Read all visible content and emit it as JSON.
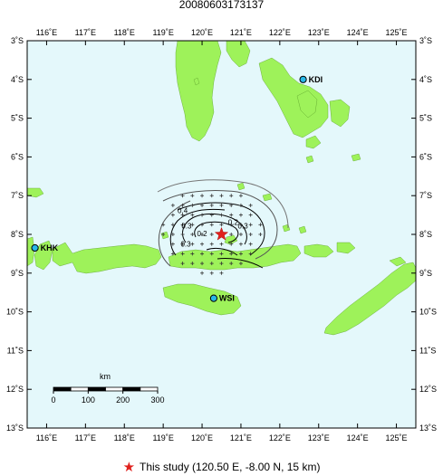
{
  "title": "20080603173137",
  "map": {
    "lon_range": [
      115.5,
      125.5
    ],
    "lat_range": [
      -13,
      -3
    ],
    "land_color": "#9ef25a",
    "sea_color": "#e4f8fb",
    "lon_ticks": [
      {
        "value": 116,
        "label": "116˚E"
      },
      {
        "value": 117,
        "label": "117˚E"
      },
      {
        "value": 118,
        "label": "118˚E"
      },
      {
        "value": 119,
        "label": "119˚E"
      },
      {
        "value": 120,
        "label": "120˚E"
      },
      {
        "value": 121,
        "label": "121˚E"
      },
      {
        "value": 122,
        "label": "122˚E"
      },
      {
        "value": 123,
        "label": "123˚E"
      },
      {
        "value": 124,
        "label": "124˚E"
      },
      {
        "value": 125,
        "label": "125˚E"
      }
    ],
    "lat_ticks": [
      {
        "value": -3,
        "label": "3˚S"
      },
      {
        "value": -4,
        "label": "4˚S"
      },
      {
        "value": -5,
        "label": "5˚S"
      },
      {
        "value": -6,
        "label": "6˚S"
      },
      {
        "value": -7,
        "label": "7˚S"
      },
      {
        "value": -8,
        "label": "8˚S"
      },
      {
        "value": -9,
        "label": "9˚S"
      },
      {
        "value": -10,
        "label": "10˚S"
      },
      {
        "value": -11,
        "label": "11˚S"
      },
      {
        "value": -12,
        "label": "12˚S"
      },
      {
        "value": -13,
        "label": "13˚S"
      }
    ],
    "stations": [
      {
        "code": "KDI",
        "lon": 122.6,
        "lat": -4.0
      },
      {
        "code": "KHK",
        "lon": 115.7,
        "lat": -8.35
      },
      {
        "code": "WSI",
        "lon": 120.3,
        "lat": -9.65
      }
    ],
    "epicenter": {
      "lon": 120.5,
      "lat": -8.0
    },
    "contour_labels": [
      {
        "text": "0.4",
        "lon": 119.5,
        "lat": -7.45
      },
      {
        "text": "0.3",
        "lon": 119.6,
        "lat": -7.85
      },
      {
        "text": "0.2",
        "lon": 120.0,
        "lat": -8.05
      },
      {
        "text": "0.3",
        "lon": 119.58,
        "lat": -8.32
      },
      {
        "text": "0.2",
        "lon": 120.8,
        "lat": -7.75
      },
      {
        "text": "0.3",
        "lon": 121.05,
        "lat": -7.85
      }
    ],
    "scalebar": {
      "title": "km",
      "ticks": [
        {
          "value": 0,
          "label": "0"
        },
        {
          "value": 100,
          "label": "100"
        },
        {
          "value": 200,
          "label": "200"
        },
        {
          "value": 300,
          "label": "300"
        }
      ]
    }
  },
  "legend": {
    "text": "This study (120.50 E, -8.00 N, 15 km)",
    "marker_color": "#e0201c"
  }
}
